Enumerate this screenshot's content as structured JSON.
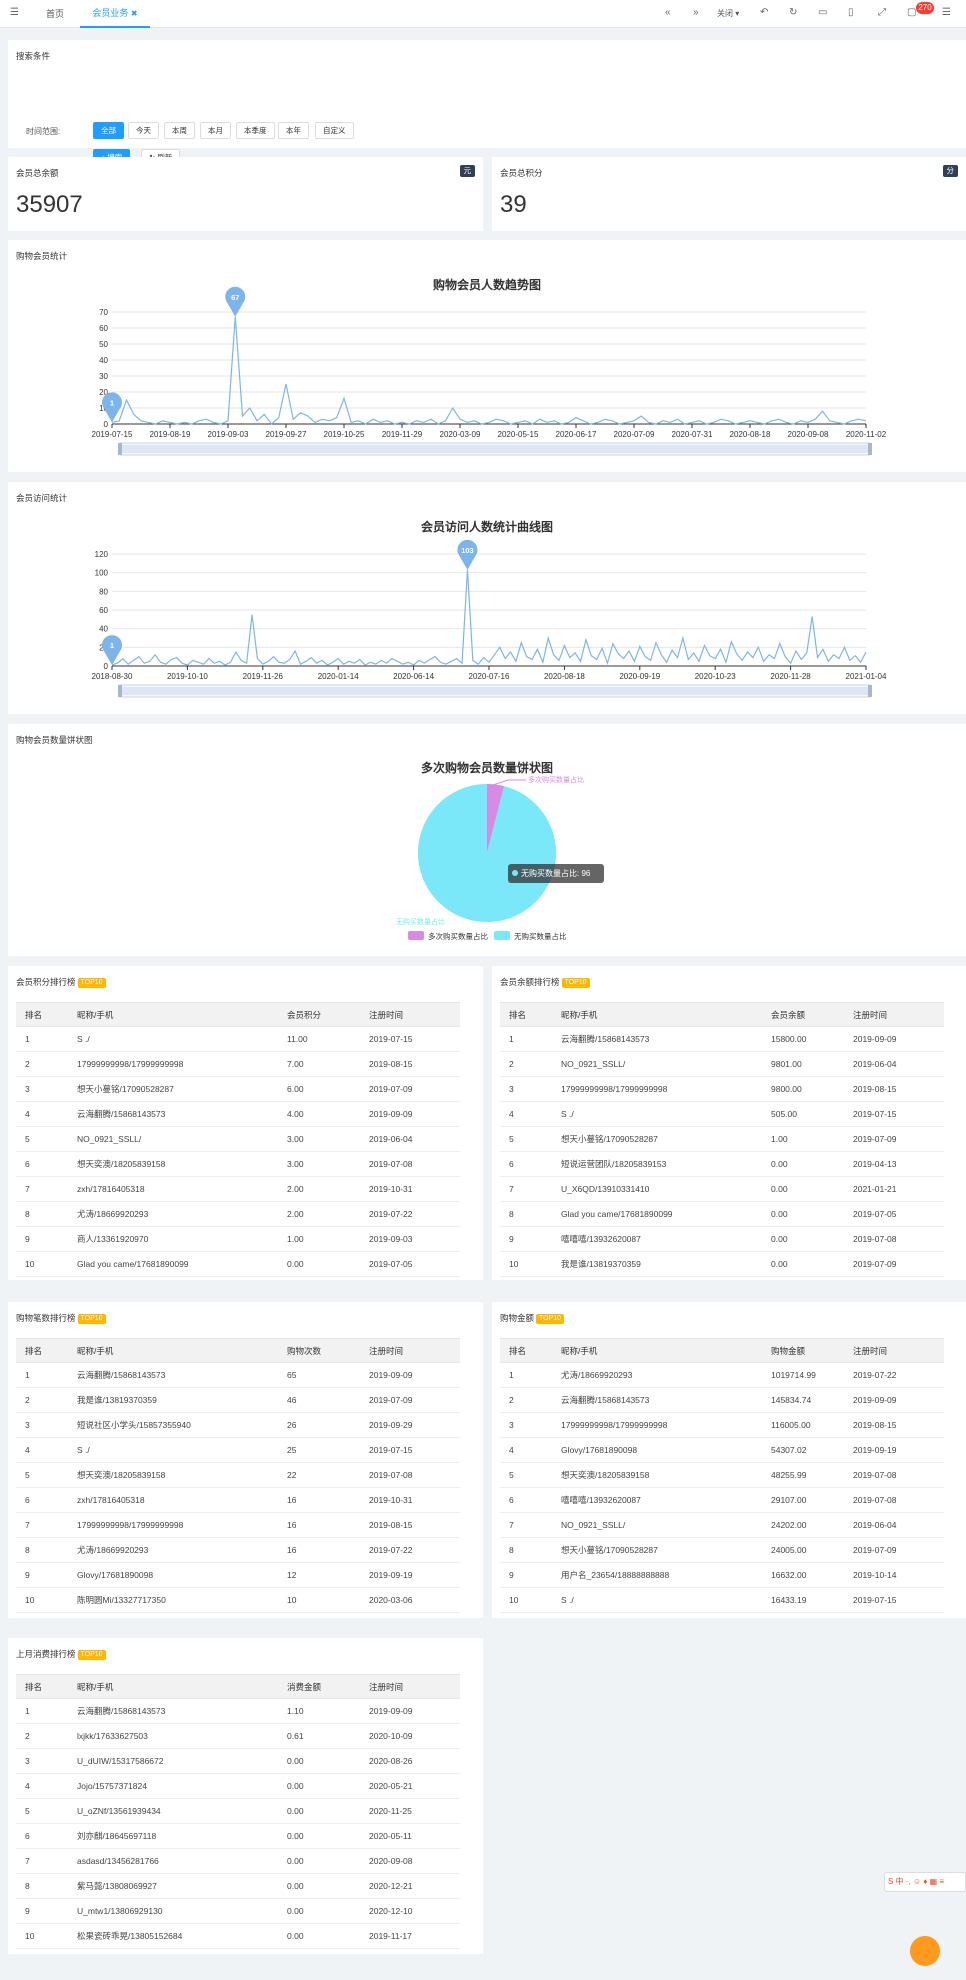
{
  "topbar": {
    "home_tab": "首页",
    "active_tab": "会员业务",
    "close_label": "关闭",
    "notifications": "270"
  },
  "search": {
    "title": "搜索条件",
    "time_label": "时间范围:",
    "time_options": [
      "全部",
      "今天",
      "本周",
      "本月",
      "本季度",
      "本年",
      "自定义"
    ],
    "search_button": "搜索",
    "refresh_button": "刷新"
  },
  "balance": {
    "title": "会员总余额",
    "unit": "元",
    "value": "35907"
  },
  "points": {
    "title": "会员总积分",
    "unit": "分",
    "value": "39"
  },
  "shopping_stats": {
    "section_title": "购物会员统计",
    "chart_title": "购物会员人数趋势图"
  },
  "visit_stats": {
    "section_title": "会员访问统计",
    "chart_title": "会员访问人数统计曲线图"
  },
  "pie_section": {
    "section_title": "购物会员数量饼状图",
    "chart_title": "多次购物会员数量饼状图"
  },
  "chart_data": [
    {
      "type": "line",
      "title": "购物会员人数趋势图",
      "ylim": [
        0,
        70
      ],
      "yticks": [
        0,
        10,
        20,
        30,
        40,
        50,
        60,
        70
      ],
      "xtick_labels": [
        "2019-07-15",
        "2019-08-19",
        "2019-09-03",
        "2019-09-27",
        "2019-10-25",
        "2019-11-29",
        "2020-03-09",
        "2020-05-15",
        "2020-06-17",
        "2020-07-09",
        "2020-07-31",
        "2020-08-18",
        "2020-09-08",
        "2020-11-02"
      ],
      "values": [
        1,
        2,
        15,
        6,
        2,
        1,
        0,
        2,
        1,
        0,
        1,
        0,
        2,
        3,
        1,
        0,
        2,
        67,
        5,
        10,
        2,
        6,
        0,
        4,
        25,
        3,
        7,
        5,
        1,
        3,
        2,
        4,
        16,
        1,
        2,
        0,
        3,
        1,
        2,
        0,
        1,
        0,
        2,
        1,
        3,
        0,
        2,
        10,
        3,
        1,
        2,
        0,
        1,
        3,
        2,
        0,
        1,
        2,
        0,
        3,
        1,
        2,
        0,
        1,
        4,
        2,
        0,
        1,
        3,
        2,
        0,
        1,
        2,
        5,
        1,
        0,
        2,
        1,
        3,
        0,
        1,
        2,
        0,
        1,
        3,
        2,
        0,
        1,
        2,
        1,
        0,
        2,
        3,
        1,
        0,
        2,
        1,
        3,
        8,
        2,
        1,
        0,
        2,
        3,
        2
      ],
      "markers": [
        {
          "label": "1"
        },
        {
          "label": "67"
        }
      ],
      "color": "#7cb5ec"
    },
    {
      "type": "line",
      "title": "会员访问人数统计曲线图",
      "ylim": [
        0,
        120
      ],
      "yticks": [
        0,
        20,
        40,
        60,
        80,
        100,
        120
      ],
      "xtick_labels": [
        "2018-08-30",
        "2019-10-10",
        "2019-11-26",
        "2020-01-14",
        "2020-06-14",
        "2020-07-16",
        "2020-08-18",
        "2020-09-19",
        "2020-10-23",
        "2020-11-28",
        "2021-01-04"
      ],
      "values": [
        1,
        3,
        8,
        2,
        6,
        10,
        3,
        5,
        12,
        4,
        2,
        7,
        9,
        3,
        1,
        6,
        4,
        2,
        8,
        3,
        5,
        1,
        4,
        15,
        6,
        3,
        55,
        8,
        2,
        5,
        10,
        4,
        3,
        7,
        16,
        2,
        5,
        9,
        3,
        6,
        1,
        4,
        8,
        2,
        5,
        3,
        7,
        1,
        4,
        2,
        6,
        3,
        8,
        5,
        2,
        4,
        1,
        6,
        3,
        7,
        10,
        4,
        2,
        5,
        8,
        3,
        103,
        6,
        2,
        9,
        4,
        12,
        20,
        8,
        15,
        5,
        25,
        10,
        7,
        18,
        4,
        30,
        12,
        6,
        22,
        9,
        14,
        5,
        28,
        11,
        7,
        19,
        3,
        24,
        13,
        8,
        16,
        5,
        21,
        10,
        6,
        25,
        12,
        4,
        17,
        9,
        30,
        7,
        14,
        5,
        22,
        11,
        8,
        18,
        4,
        26,
        13,
        6,
        15,
        9,
        20,
        5,
        12,
        8,
        24,
        10,
        3,
        16,
        7,
        14,
        53,
        9,
        18,
        5,
        12,
        8,
        20,
        6,
        11,
        4,
        15
      ],
      "markers": [
        {
          "label": "1"
        },
        {
          "label": "103"
        }
      ],
      "color": "#7cb5ec"
    },
    {
      "type": "pie",
      "title": "多次购物会员数量饼状图",
      "slices": [
        {
          "name": "多次购买数量占比",
          "value": 4,
          "color": "#d98ae5"
        },
        {
          "name": "无购买数量占比",
          "value": 96,
          "color": "#7ae8f9"
        }
      ],
      "tooltip": "无购买数量占比: 96",
      "legend": "bottom"
    }
  ],
  "points_rank": {
    "title": "会员积分排行榜",
    "badge": "TOP10",
    "headers": [
      "排名",
      "昵称/手机",
      "会员积分",
      "注册时间"
    ],
    "rows": [
      [
        "1",
        "S ./",
        "11.00",
        "2019-07-15"
      ],
      [
        "2",
        "17999999998/17999999998",
        "7.00",
        "2019-08-15"
      ],
      [
        "3",
        "想天小蔓铭/17090528287",
        "6.00",
        "2019-07-09"
      ],
      [
        "4",
        "云海翻腾/15868143573",
        "4.00",
        "2019-09-09"
      ],
      [
        "5",
        "NO_0921_SSLL/",
        "3.00",
        "2019-06-04"
      ],
      [
        "6",
        "想天奕澳/18205839158",
        "3.00",
        "2019-07-08"
      ],
      [
        "7",
        "zxh/17816405318",
        "2.00",
        "2019-10-31"
      ],
      [
        "8",
        "尤涛/18669920293",
        "2.00",
        "2019-07-22"
      ],
      [
        "9",
        "商人/13361920970",
        "1.00",
        "2019-09-03"
      ],
      [
        "10",
        "Glad you came/17681890099",
        "0.00",
        "2019-07-05"
      ]
    ]
  },
  "balance_rank": {
    "title": "会员余额排行榜",
    "badge": "TOP10",
    "headers": [
      "排名",
      "昵称/手机",
      "会员余额",
      "注册时间"
    ],
    "rows": [
      [
        "1",
        "云海翻腾/15868143573",
        "15800.00",
        "2019-09-09"
      ],
      [
        "2",
        "NO_0921_SSLL/",
        "9801.00",
        "2019-06-04"
      ],
      [
        "3",
        "17999999998/17999999998",
        "9800.00",
        "2019-08-15"
      ],
      [
        "4",
        "S ./",
        "505.00",
        "2019-07-15"
      ],
      [
        "5",
        "想天小蔓铭/17090528287",
        "1.00",
        "2019-07-09"
      ],
      [
        "6",
        "短说运营团队/18205839153",
        "0.00",
        "2019-04-13"
      ],
      [
        "7",
        "U_X6QD/13910331410",
        "0.00",
        "2021-01-21"
      ],
      [
        "8",
        "Glad you came/17681890099",
        "0.00",
        "2019-07-05"
      ],
      [
        "9",
        "嘻嘻嘻/13932620087",
        "0.00",
        "2019-07-08"
      ],
      [
        "10",
        "我是谁/13819370359",
        "0.00",
        "2019-07-09"
      ]
    ]
  },
  "count_rank": {
    "title": "购物笔数排行榜",
    "badge": "TOP10",
    "headers": [
      "排名",
      "昵称/手机",
      "购物次数",
      "注册时间"
    ],
    "rows": [
      [
        "1",
        "云海翻腾/15868143573",
        "65",
        "2019-09-09"
      ],
      [
        "2",
        "我是谁/13819370359",
        "46",
        "2019-07-09"
      ],
      [
        "3",
        "短说社区小学头/15857355940",
        "26",
        "2019-09-29"
      ],
      [
        "4",
        "S ./",
        "25",
        "2019-07-15"
      ],
      [
        "5",
        "想天奕澳/18205839158",
        "22",
        "2019-07-08"
      ],
      [
        "6",
        "zxh/17816405318",
        "16",
        "2019-10-31"
      ],
      [
        "7",
        "17999999998/17999999998",
        "16",
        "2019-08-15"
      ],
      [
        "8",
        "尤涛/18669920293",
        "16",
        "2019-07-22"
      ],
      [
        "9",
        "Glovy/17681890098",
        "12",
        "2019-09-19"
      ],
      [
        "10",
        "陈明圆Mi/13327717350",
        "10",
        "2020-03-06"
      ]
    ]
  },
  "amount_rank": {
    "title": "购物金额",
    "badge": "TOP10",
    "headers": [
      "排名",
      "昵称/手机",
      "购物金额",
      "注册时间"
    ],
    "rows": [
      [
        "1",
        "尤涛/18669920293",
        "1019714.99",
        "2019-07-22"
      ],
      [
        "2",
        "云海翻腾/15868143573",
        "145834.74",
        "2019-09-09"
      ],
      [
        "3",
        "17999999998/17999999998",
        "116005.00",
        "2019-08-15"
      ],
      [
        "4",
        "Glovy/17681890098",
        "54307.02",
        "2019-09-19"
      ],
      [
        "5",
        "想天奕澳/18205839158",
        "48255.99",
        "2019-07-08"
      ],
      [
        "6",
        "嘻嘻嘻/13932620087",
        "29107.00",
        "2019-07-08"
      ],
      [
        "7",
        "NO_0921_SSLL/",
        "24202.00",
        "2019-06-04"
      ],
      [
        "8",
        "想天小蔓铭/17090528287",
        "24005.00",
        "2019-07-09"
      ],
      [
        "9",
        "用户名_23654/18888888888",
        "16632.00",
        "2019-10-14"
      ],
      [
        "10",
        "S ./",
        "16433.19",
        "2019-07-15"
      ]
    ]
  },
  "month_rank": {
    "title": "上月消费排行榜",
    "badge": "TOP10",
    "headers": [
      "排名",
      "昵称/手机",
      "消费金额",
      "注册时间"
    ],
    "rows": [
      [
        "1",
        "云海翻腾/15868143573",
        "1.10",
        "2019-09-09"
      ],
      [
        "2",
        "lxjkk/17633627503",
        "0.61",
        "2020-10-09"
      ],
      [
        "3",
        "U_dUIW/15317586672",
        "0.00",
        "2020-08-26"
      ],
      [
        "4",
        "Jojo/15757371824",
        "0.00",
        "2020-05-21"
      ],
      [
        "5",
        "U_oZNf/13561939434",
        "0.00",
        "2020-11-25"
      ],
      [
        "6",
        "刘亦麒/18645697118",
        "0.00",
        "2020-05-11"
      ],
      [
        "7",
        "asdasd/13456281766",
        "0.00",
        "2020-09-08"
      ],
      [
        "8",
        "紫马懿/13808069927",
        "0.00",
        "2020-12-21"
      ],
      [
        "9",
        "U_mtw1/13806929130",
        "0.00",
        "2020-12-10"
      ],
      [
        "10",
        "松果瓷砖乖晃/13805152684",
        "0.00",
        "2019-11-17"
      ]
    ]
  },
  "ime_widget": {
    "label": "S 中 ·, ☺ ♦ ▦ ≡"
  }
}
